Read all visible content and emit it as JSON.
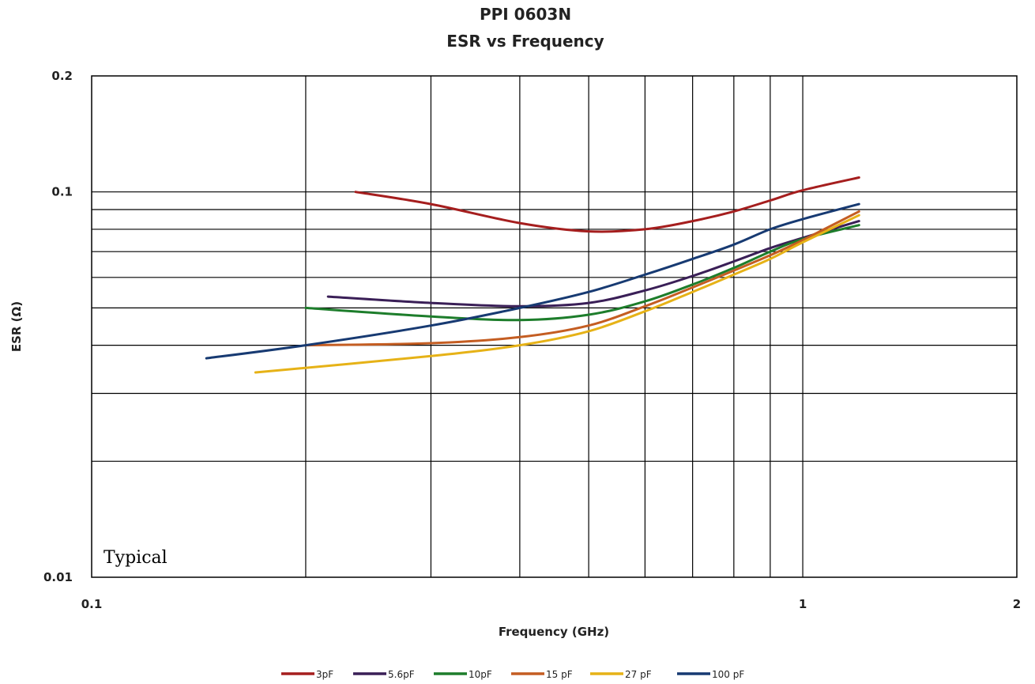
{
  "chart_data": {
    "type": "line",
    "title": "PPI 0603N",
    "subtitle": "ESR vs Frequency",
    "xlabel": "Frequency (GHz)",
    "ylabel": "ESR (Ω)",
    "x_scale": "log",
    "y_scale": "log",
    "xlim": [
      0.1,
      2
    ],
    "ylim": [
      0.01,
      0.2
    ],
    "x_ticks": [
      0.1,
      1,
      2
    ],
    "x_tick_labels": [
      "0.1",
      "1",
      "2"
    ],
    "y_ticks": [
      0.01,
      0.1,
      0.2
    ],
    "y_tick_labels": [
      "0.01",
      "0.1",
      "0.2"
    ],
    "x_gridlines": [
      0.2,
      0.3,
      0.4,
      0.5,
      0.6,
      0.7,
      0.8,
      0.9,
      1.0
    ],
    "y_gridlines": [
      0.02,
      0.03,
      0.04,
      0.05,
      0.06,
      0.07,
      0.08,
      0.09,
      0.1
    ],
    "grid": true,
    "legend_position": "bottom",
    "annotation": "Typical",
    "series": [
      {
        "name": "3pF",
        "color": "#a51e1e",
        "x": [
          0.235,
          0.3,
          0.4,
          0.5,
          0.6,
          0.7,
          0.8,
          0.9,
          1.0,
          1.2
        ],
        "y": [
          0.1,
          0.093,
          0.083,
          0.079,
          0.08,
          0.084,
          0.089,
          0.095,
          0.101,
          0.109
        ]
      },
      {
        "name": "5.6pF",
        "color": "#3a1f57",
        "x": [
          0.215,
          0.3,
          0.4,
          0.5,
          0.6,
          0.7,
          0.8,
          0.9,
          1.0,
          1.2
        ],
        "y": [
          0.0535,
          0.0515,
          0.0505,
          0.0515,
          0.0555,
          0.0605,
          0.066,
          0.0715,
          0.076,
          0.084
        ]
      },
      {
        "name": "10pF",
        "color": "#1d7d2b",
        "x": [
          0.2,
          0.3,
          0.4,
          0.5,
          0.6,
          0.7,
          0.8,
          0.9,
          1.0,
          1.2
        ],
        "y": [
          0.05,
          0.0475,
          0.0465,
          0.048,
          0.052,
          0.0575,
          0.0635,
          0.07,
          0.0755,
          0.082
        ]
      },
      {
        "name": "15 pF",
        "color": "#c45d22",
        "x": [
          0.2,
          0.3,
          0.4,
          0.5,
          0.6,
          0.7,
          0.8,
          0.9,
          1.0,
          1.2
        ],
        "y": [
          0.04,
          0.0405,
          0.042,
          0.045,
          0.0505,
          0.0565,
          0.0625,
          0.0685,
          0.075,
          0.089
        ]
      },
      {
        "name": "27 pF",
        "color": "#e6b217",
        "x": [
          0.17,
          0.3,
          0.4,
          0.5,
          0.6,
          0.7,
          0.8,
          0.9,
          1.0,
          1.2
        ],
        "y": [
          0.034,
          0.0375,
          0.04,
          0.0435,
          0.049,
          0.055,
          0.061,
          0.067,
          0.074,
          0.087
        ]
      },
      {
        "name": "100 pF",
        "color": "#173a72",
        "x": [
          0.145,
          0.2,
          0.3,
          0.4,
          0.5,
          0.6,
          0.7,
          0.8,
          0.9,
          1.0,
          1.2
        ],
        "y": [
          0.037,
          0.04,
          0.045,
          0.05,
          0.055,
          0.061,
          0.067,
          0.073,
          0.08,
          0.085,
          0.093
        ]
      }
    ]
  }
}
